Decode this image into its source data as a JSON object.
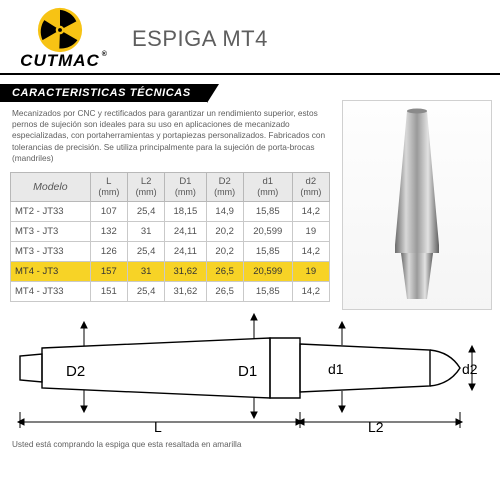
{
  "brand": "CUTMAC",
  "title": "ESPIGA MT4",
  "section_heading": "CARACTERISTICAS TÉCNICAS",
  "description": "Mecanizados por CNC y rectificados para garantizar un rendimiento superior, estos pernos de sujeción son ideales para su uso en aplicaciones de mecanizado especializadas, con portaherramientas y portapiezas personalizados. Fabricados con tolerancias de precisión. Se utiliza principalmente para la sujeción de porta-brocas (mandriles)",
  "table": {
    "columns": [
      {
        "label": "Modelo",
        "unit": ""
      },
      {
        "label": "L",
        "unit": "(mm)"
      },
      {
        "label": "L2",
        "unit": "(mm)"
      },
      {
        "label": "D1",
        "unit": "(mm)"
      },
      {
        "label": "D2",
        "unit": "(mm)"
      },
      {
        "label": "d1",
        "unit": "(mm)"
      },
      {
        "label": "d2",
        "unit": "(mm)"
      }
    ],
    "rows": [
      {
        "hl": false,
        "cells": [
          "MT2 - JT33",
          "107",
          "25,4",
          "18,15",
          "14,9",
          "15,85",
          "14,2"
        ]
      },
      {
        "hl": false,
        "cells": [
          "MT3 - JT3",
          "132",
          "31",
          "24,11",
          "20,2",
          "20,599",
          "19"
        ]
      },
      {
        "hl": false,
        "cells": [
          "MT3 - JT33",
          "126",
          "25,4",
          "24,11",
          "20,2",
          "15,85",
          "14,2"
        ]
      },
      {
        "hl": true,
        "cells": [
          "MT4 - JT3",
          "157",
          "31",
          "31,62",
          "26,5",
          "20,599",
          "19"
        ]
      },
      {
        "hl": false,
        "cells": [
          "MT4 - JT33",
          "151",
          "25,4",
          "31,62",
          "26,5",
          "15,85",
          "14,2"
        ]
      }
    ]
  },
  "diagram": {
    "labels": {
      "D2": "D2",
      "D1": "D1",
      "d1": "d1",
      "d2": "d2",
      "L": "L",
      "L2": "L2"
    },
    "stroke": "#000000",
    "fontsize": 13,
    "fontfamily": "sans-serif"
  },
  "footnote": "Usted está comprando la espiga que esta resaltada en amarilla",
  "colors": {
    "highlight": "#f7d326",
    "header_bg": "#e9e9e9",
    "border": "#c9c9c9",
    "text": "#505050",
    "brand_yellow": "#f7c314"
  }
}
